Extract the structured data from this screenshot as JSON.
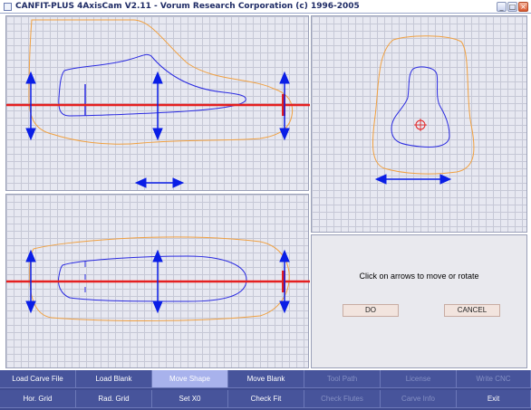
{
  "window": {
    "title": "CANFIT-PLUS 4AxisCam V2.11 - Vorum Research Corporation (c) 1996-2005",
    "minimize_glyph": "_",
    "maximize_glyph": "□",
    "close_glyph": "×"
  },
  "colors": {
    "outline_orange": "#f0a040",
    "shape_blue": "#2a2ae0",
    "axis_red": "#e52020",
    "arrow_blue": "#0a1ee6"
  },
  "message_panel": {
    "text": "Click on arrows to move or rotate",
    "do_label": "DO",
    "cancel_label": "CANCEL"
  },
  "toolbar": {
    "row1": [
      {
        "id": "load-carve-file",
        "label": "Load Carve File",
        "state": "normal"
      },
      {
        "id": "load-blank",
        "label": "Load Blank",
        "state": "normal"
      },
      {
        "id": "move-shape",
        "label": "Move Shape",
        "state": "active"
      },
      {
        "id": "move-blank",
        "label": "Move Blank",
        "state": "normal"
      },
      {
        "id": "tool-path",
        "label": "Tool Path",
        "state": "disabled"
      },
      {
        "id": "license",
        "label": "License",
        "state": "disabled"
      },
      {
        "id": "write-cnc",
        "label": "Write CNC",
        "state": "disabled"
      }
    ],
    "row2": [
      {
        "id": "hor-grid",
        "label": "Hor. Grid",
        "state": "normal"
      },
      {
        "id": "rad-grid",
        "label": "Rad. Grid",
        "state": "normal"
      },
      {
        "id": "set-x0",
        "label": "Set X0",
        "state": "normal"
      },
      {
        "id": "check-fit",
        "label": "Check Fit",
        "state": "normal"
      },
      {
        "id": "check-flutes",
        "label": "Check Flutes",
        "state": "disabled"
      },
      {
        "id": "carve-info",
        "label": "Carve Info",
        "state": "disabled"
      },
      {
        "id": "exit",
        "label": "Exit",
        "state": "normal"
      }
    ]
  }
}
